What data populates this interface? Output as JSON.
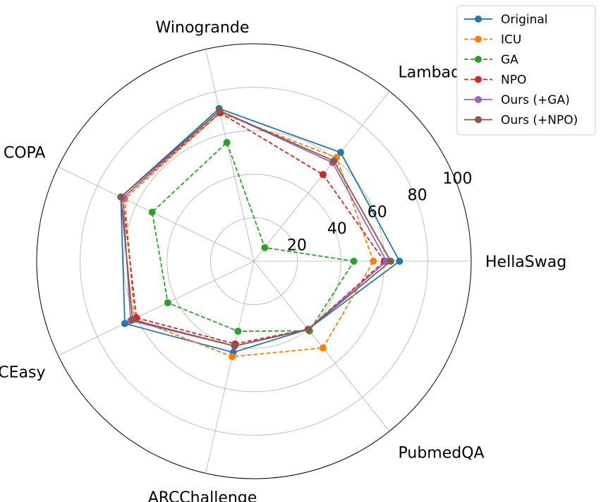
{
  "chart_data": {
    "type": "radar",
    "categories": [
      "HellaSwag",
      "Lambada",
      "Winogrande",
      "COPA",
      "ARCEasy",
      "ARCChallenge",
      "PubmedQA"
    ],
    "rmax": 100,
    "rticks": [
      20,
      40,
      60,
      80,
      100
    ],
    "grid": true,
    "legend_position": "top-right",
    "series": [
      {
        "name": "Original",
        "color": "#1f77b4",
        "style": "solid",
        "values": [
          67,
          64,
          72,
          68,
          66,
          43,
          40
        ]
      },
      {
        "name": "ICU",
        "color": "#ff7f0e",
        "style": "dashed",
        "values": [
          55,
          61,
          70,
          66,
          61,
          45,
          51
        ]
      },
      {
        "name": "GA",
        "color": "#2ca02c",
        "style": "dashed",
        "values": [
          46,
          8,
          56,
          52,
          44,
          33,
          41
        ]
      },
      {
        "name": "NPO",
        "color": "#d62728",
        "style": "dashed",
        "values": [
          60,
          51,
          70,
          67,
          60,
          39,
          40
        ]
      },
      {
        "name": "Ours (+GA)",
        "color": "#9467bd",
        "style": "solid",
        "values": [
          61,
          58,
          71,
          67,
          63,
          40,
          40
        ]
      },
      {
        "name": "Ours (+NPO)",
        "color": "#8c564b",
        "style": "solid",
        "values": [
          63,
          59,
          71,
          68,
          62,
          40,
          40
        ]
      }
    ]
  }
}
